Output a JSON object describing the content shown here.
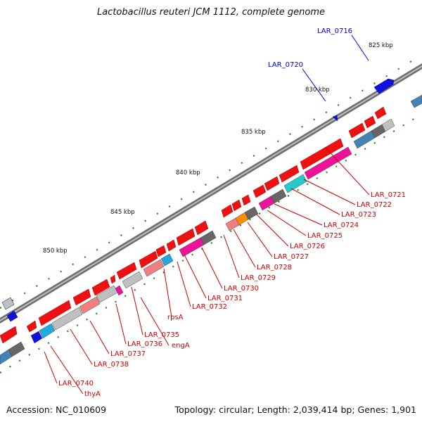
{
  "title": "Lactobacillus reuteri JCM 1112, complete genome",
  "accession": "Accession: NC_010609",
  "summary": "Topology: circular; Length: 2,039,414 bp; Genes: 1,901",
  "scale_labels": [
    "825 kbp",
    "830 kbp",
    "835 kbp",
    "840 kbp",
    "845 kbp",
    "850 kbp"
  ],
  "forward_labels": [
    "LAR_0716",
    "LAR_0720"
  ],
  "reverse_labels": [
    "LAR_0721",
    "LAR_0722",
    "LAR_0723",
    "LAR_0724",
    "LAR_0725",
    "LAR_0726",
    "LAR_0727",
    "LAR_0728",
    "LAR_0729",
    "LAR_0730",
    "LAR_0731",
    "LAR_0732",
    "rpsA",
    "LAR_0735",
    "engA",
    "LAR_0736",
    "LAR_0737",
    "LAR_0738",
    "LAR_0740",
    "thyA"
  ],
  "colors": {
    "reverse_gene": "#ee1111",
    "forward_gene": "#1111dd",
    "backbone": "#888888",
    "tick": "#1a8a1a",
    "label_forward": "#0000cc",
    "label_reverse": "#cc0000"
  }
}
